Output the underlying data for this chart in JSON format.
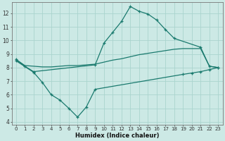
{
  "xlabel": "Humidex (Indice chaleur)",
  "xlim": [
    -0.5,
    23.5
  ],
  "ylim": [
    3.8,
    12.8
  ],
  "yticks": [
    4,
    5,
    6,
    7,
    8,
    9,
    10,
    11,
    12
  ],
  "x_ticks": [
    0,
    1,
    2,
    3,
    4,
    5,
    6,
    7,
    8,
    9,
    10,
    11,
    12,
    13,
    14,
    15,
    16,
    17,
    18,
    19,
    20,
    21,
    22,
    23
  ],
  "bg_color": "#cce9e5",
  "grid_color": "#aad4ce",
  "line_color": "#1a7a6e",
  "line1_x": [
    0,
    1,
    2,
    9,
    10,
    11,
    12,
    13,
    14,
    15,
    16,
    17,
    18,
    21,
    22,
    23
  ],
  "line1_y": [
    8.6,
    8.1,
    7.7,
    8.2,
    9.8,
    10.6,
    11.4,
    12.5,
    12.15,
    11.95,
    11.5,
    10.8,
    10.15,
    9.5,
    8.1,
    8.0
  ],
  "line2_x": [
    0,
    1,
    2,
    3,
    4,
    5,
    6,
    7,
    8,
    9,
    10,
    11,
    12,
    13,
    14,
    15,
    16,
    17,
    18,
    19,
    20,
    21,
    22,
    23
  ],
  "line2_y": [
    8.6,
    8.15,
    8.1,
    8.05,
    8.05,
    8.1,
    8.15,
    8.15,
    8.2,
    8.25,
    8.4,
    8.55,
    8.65,
    8.8,
    8.95,
    9.05,
    9.15,
    9.25,
    9.35,
    9.4,
    9.4,
    9.4,
    8.1,
    8.0
  ],
  "line3_x": [
    0,
    2,
    3,
    4,
    5,
    6,
    7,
    8,
    9,
    19,
    20,
    21,
    22,
    23
  ],
  "line3_y": [
    8.5,
    7.65,
    6.9,
    6.0,
    5.6,
    5.0,
    4.35,
    5.1,
    6.4,
    7.5,
    7.6,
    7.7,
    7.85,
    8.0
  ]
}
